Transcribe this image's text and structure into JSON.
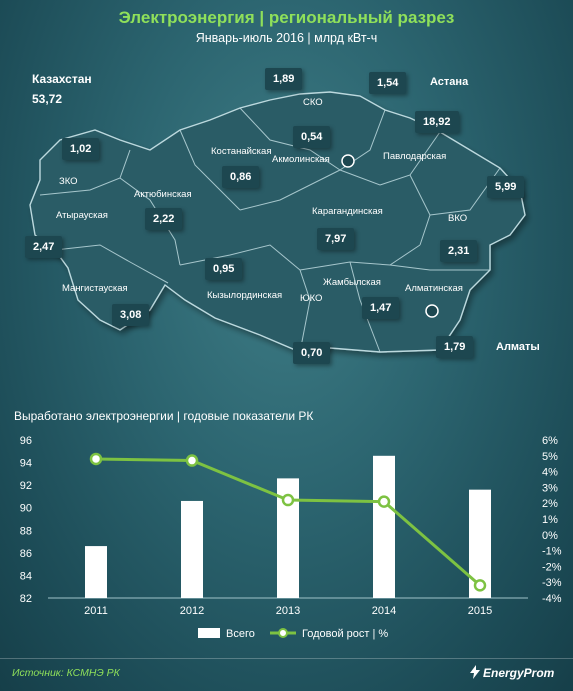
{
  "header": {
    "title": "Электроэнергия | региональный разрез",
    "subtitle": "Январь-июль 2016 | млрд кВт-ч"
  },
  "country": {
    "name": "Казахстан",
    "value": "53,72"
  },
  "regions": [
    {
      "name": "ЗКО",
      "value": "1,02"
    },
    {
      "name": "Атырауская",
      "value": "2,47"
    },
    {
      "name": "Мангистауская",
      "value": "3,08"
    },
    {
      "name": "Актюбинская",
      "value": "2,22"
    },
    {
      "name": "Костанайская",
      "value": "0,86"
    },
    {
      "name": "СКО",
      "value": "1,89"
    },
    {
      "name": "Акмолинская",
      "value": "0,54"
    },
    {
      "name": "Павлодарская",
      "value": "18,92"
    },
    {
      "name": "ВКО",
      "value": "5,99"
    },
    {
      "name": "Карагандинская",
      "value": "7,97"
    },
    {
      "name": "Кызылординская",
      "value": "0,95"
    },
    {
      "name": "ЮКО",
      "value": "0,70"
    },
    {
      "name": "Жамбылская",
      "value": "1,47"
    },
    {
      "name": "Алматинская",
      "value": "2,31"
    }
  ],
  "cities": [
    {
      "name": "Астана",
      "value": "1,54"
    },
    {
      "name": "Алматы",
      "value": "1,79"
    }
  ],
  "colors": {
    "accent_green": "#8fe05a",
    "line_green": "#7dc242",
    "map_fill": "#2b5b66",
    "bar_fill": "#ffffff"
  },
  "chart_data": {
    "type": "bar",
    "title": "Выработано электроэнергии | годовые показатели РК",
    "categories": [
      "2011",
      "2012",
      "2013",
      "2014",
      "2015"
    ],
    "y_left": {
      "min": 82,
      "max": 96,
      "ticks": [
        "82",
        "84",
        "86",
        "88",
        "90",
        "92",
        "94",
        "96"
      ]
    },
    "y_right": {
      "min": -4,
      "max": 6,
      "ticks": [
        "-4%",
        "-3%",
        "-2%",
        "-1%",
        "0%",
        "1%",
        "2%",
        "3%",
        "4%",
        "5%",
        "6%"
      ]
    },
    "series": [
      {
        "name": "Всего",
        "type": "bar",
        "axis": "left",
        "values": [
          86.6,
          90.6,
          92.6,
          94.6,
          91.6
        ]
      },
      {
        "name": "Годовой рост | %",
        "type": "line",
        "axis": "right",
        "values": [
          4.8,
          4.7,
          2.2,
          2.1,
          -3.2
        ]
      }
    ],
    "grid": false,
    "legend": "bottom"
  },
  "footer": {
    "source": "Источник: КСМНЭ РК",
    "brand": "EnergyProm"
  }
}
